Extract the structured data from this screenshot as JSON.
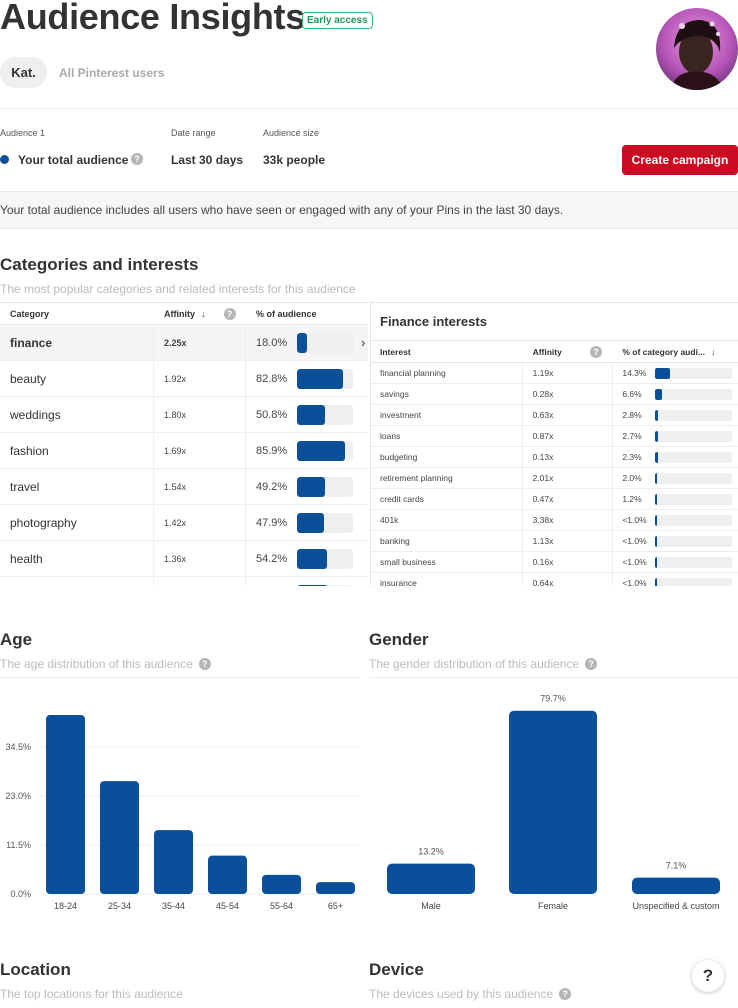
{
  "header": {
    "title": "Audience Insights",
    "badge": "Early access",
    "tabs": [
      "Kat.",
      "All Pinterest users"
    ]
  },
  "audience": {
    "audience_label": "Audience 1",
    "audience_value": "Your total audience",
    "date_label": "Date range",
    "date_value": "Last 30 days",
    "size_label": "Audience size",
    "size_value": "33k people",
    "create_button": "Create campaign",
    "note": "Your total audience includes all users who have seen or engaged with any of your Pins in the last 30 days.",
    "accent_color": "#0a4f99",
    "button_color": "#cc0a22"
  },
  "categories": {
    "title": "Categories and interests",
    "subtitle": "The most popular categories and related interests for this audience",
    "col_category": "Category",
    "col_affinity": "Affinity",
    "col_percent": "% of audience",
    "rows": [
      {
        "name": "finance",
        "affinity": "2.25x",
        "percent": "18.0%",
        "value": 18.0
      },
      {
        "name": "beauty",
        "affinity": "1.92x",
        "percent": "82.8%",
        "value": 82.8
      },
      {
        "name": "weddings",
        "affinity": "1.80x",
        "percent": "50.8%",
        "value": 50.8
      },
      {
        "name": "fashion",
        "affinity": "1.69x",
        "percent": "85.9%",
        "value": 85.9
      },
      {
        "name": "travel",
        "affinity": "1.54x",
        "percent": "49.2%",
        "value": 49.2
      },
      {
        "name": "photography",
        "affinity": "1.42x",
        "percent": "47.9%",
        "value": 47.9
      },
      {
        "name": "health",
        "affinity": "1.36x",
        "percent": "54.2%",
        "value": 54.2
      }
    ]
  },
  "finance": {
    "title": "Finance interests",
    "col_interest": "Interest",
    "col_affinity": "Affinity",
    "col_percent": "% of category audi...",
    "rows": [
      {
        "name": "financial planning",
        "affinity": "1.19x",
        "percent": "14.3%",
        "value": 14.3
      },
      {
        "name": "savings",
        "affinity": "0.28x",
        "percent": "6.6%",
        "value": 6.6
      },
      {
        "name": "investment",
        "affinity": "0.63x",
        "percent": "2.8%",
        "value": 2.8
      },
      {
        "name": "loans",
        "affinity": "0.87x",
        "percent": "2.7%",
        "value": 2.7
      },
      {
        "name": "budgeting",
        "affinity": "0.13x",
        "percent": "2.3%",
        "value": 2.3
      },
      {
        "name": "retirement planning",
        "affinity": "2.01x",
        "percent": "2.0%",
        "value": 2.0
      },
      {
        "name": "credit cards",
        "affinity": "0.47x",
        "percent": "1.2%",
        "value": 1.2
      },
      {
        "name": "401k",
        "affinity": "3.38x",
        "percent": "<1.0%",
        "value": 0.5
      },
      {
        "name": "banking",
        "affinity": "1.13x",
        "percent": "<1.0%",
        "value": 0.5
      },
      {
        "name": "small business",
        "affinity": "0.16x",
        "percent": "<1.0%",
        "value": 0.5
      },
      {
        "name": "insurance",
        "affinity": "0.64x",
        "percent": "<1.0%",
        "value": 0.5
      }
    ]
  },
  "age": {
    "title": "Age",
    "subtitle": "The age distribution of this audience"
  },
  "gender": {
    "title": "Gender",
    "subtitle": "The gender distribution of this audience"
  },
  "location": {
    "title": "Location",
    "subtitle": "The top locations for this audience"
  },
  "device": {
    "title": "Device",
    "subtitle": "The devices used by this audience"
  },
  "help_label": "?",
  "chart_data": [
    {
      "type": "bar",
      "categories": [
        "18-24",
        "25-34",
        "35-44",
        "45-54",
        "55-64",
        "65+"
      ],
      "values": [
        42.0,
        26.5,
        15.0,
        9.0,
        4.5,
        2.8
      ],
      "yticks": [
        "0.0%",
        "11.5%",
        "23.0%",
        "34.5%"
      ],
      "ylim": [
        0,
        46
      ]
    },
    {
      "type": "bar",
      "categories": [
        "Male",
        "Female",
        "Unspecified & custom"
      ],
      "values": [
        13.2,
        79.7,
        7.1
      ],
      "data_labels": [
        "13.2%",
        "79.7%",
        "7.1%"
      ],
      "ylim": [
        0,
        80
      ]
    }
  ]
}
